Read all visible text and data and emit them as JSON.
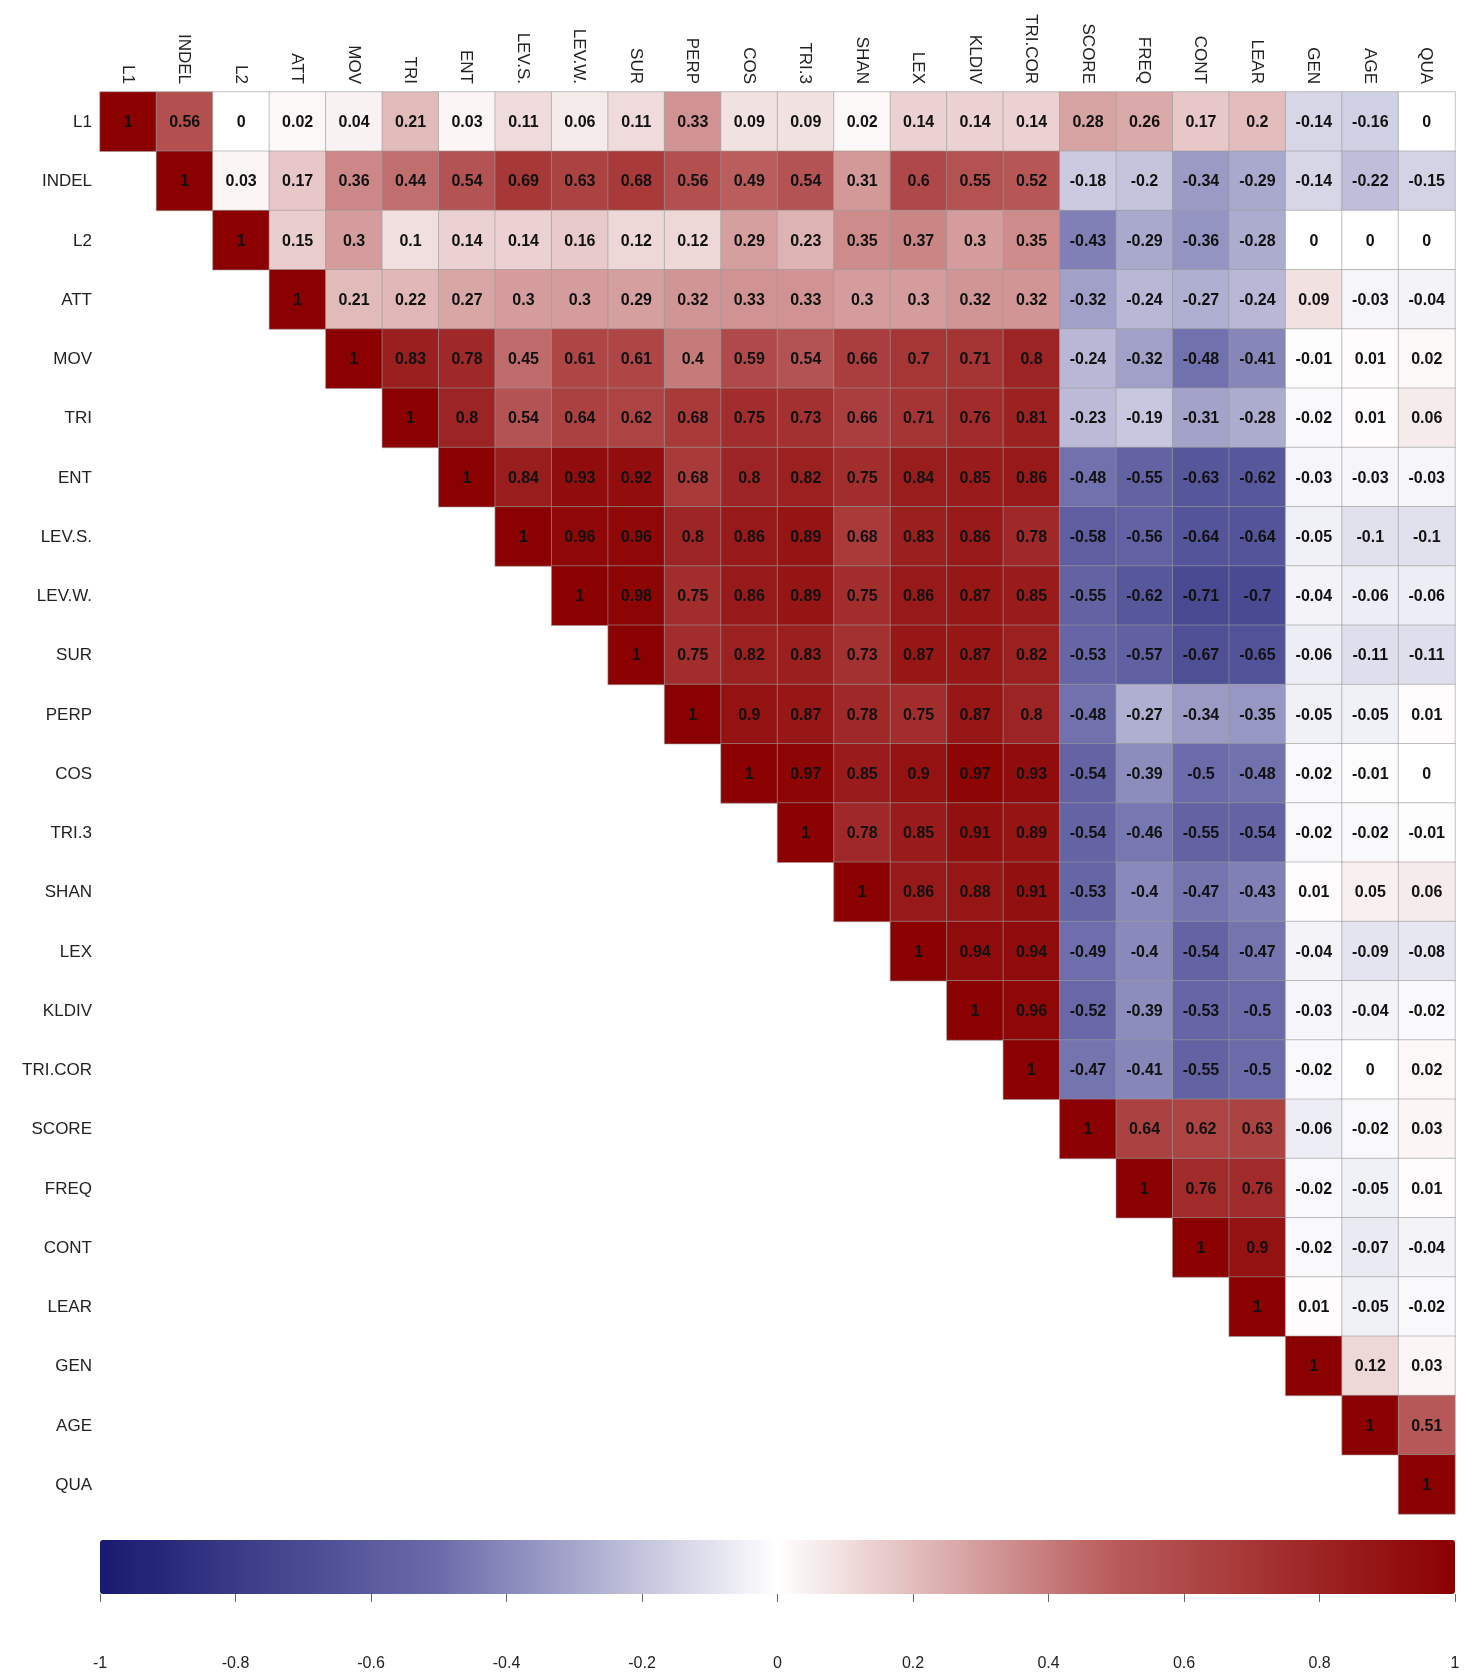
{
  "chart_data": {
    "type": "heatmap",
    "categories": [
      "L1",
      "INDEL",
      "L2",
      "ATT",
      "MOV",
      "TRI",
      "ENT",
      "LEV.S.",
      "LEV.W.",
      "SUR",
      "PERP",
      "COS",
      "TRI.3",
      "SHAN",
      "LEX",
      "KLDIV",
      "TRI.COR",
      "SCORE",
      "FREQ",
      "CONT",
      "LEAR",
      "GEN",
      "AGE",
      "QUA"
    ],
    "y_categories": [
      "L1",
      "INDEL",
      "L2",
      "ATT",
      "MOV",
      "TRI",
      "ENT",
      "LEV.S.",
      "LEV.W.",
      "SUR",
      "PERP",
      "COS",
      "TRI.3",
      "SHAN",
      "LEX",
      "KLDIV",
      "TRI.COR",
      "SCORE",
      "FREQ",
      "CONT",
      "LEAR",
      "GEN",
      "AGE",
      "QUA"
    ],
    "cells": [
      [
        1,
        0.56,
        0,
        0.02,
        0.04,
        0.21,
        0.03,
        0.11,
        0.06,
        0.11,
        0.33,
        0.09,
        0.09,
        0.02,
        0.14,
        0.14,
        0.14,
        0.28,
        0.26,
        0.17,
        0.2,
        -0.14,
        -0.16,
        0
      ],
      [
        null,
        1,
        0.03,
        0.17,
        0.36,
        0.44,
        0.54,
        0.69,
        0.63,
        0.68,
        0.56,
        0.49,
        0.54,
        0.31,
        0.6,
        0.55,
        0.52,
        -0.18,
        -0.2,
        -0.34,
        -0.29,
        -0.14,
        -0.22,
        -0.15
      ],
      [
        null,
        null,
        1,
        0.15,
        0.3,
        0.1,
        0.14,
        0.14,
        0.16,
        0.12,
        0.12,
        0.29,
        0.23,
        0.35,
        0.37,
        0.3,
        0.35,
        -0.43,
        -0.29,
        -0.36,
        -0.28,
        0,
        0,
        0
      ],
      [
        null,
        null,
        null,
        1,
        0.21,
        0.22,
        0.27,
        0.3,
        0.3,
        0.29,
        0.32,
        0.33,
        0.33,
        0.3,
        0.3,
        0.32,
        0.32,
        -0.32,
        -0.24,
        -0.27,
        -0.24,
        0.09,
        -0.03,
        -0.04
      ],
      [
        null,
        null,
        null,
        null,
        1,
        0.83,
        0.78,
        0.45,
        0.61,
        0.61,
        0.4,
        0.59,
        0.54,
        0.66,
        0.7,
        0.71,
        0.8,
        -0.24,
        -0.32,
        -0.48,
        -0.41,
        -0.01,
        0.01,
        0.02
      ],
      [
        null,
        null,
        null,
        null,
        null,
        1,
        0.8,
        0.54,
        0.64,
        0.62,
        0.68,
        0.75,
        0.73,
        0.66,
        0.71,
        0.76,
        0.81,
        -0.23,
        -0.19,
        -0.31,
        -0.28,
        -0.02,
        0.01,
        0.06
      ],
      [
        null,
        null,
        null,
        null,
        null,
        null,
        1,
        0.84,
        0.93,
        0.92,
        0.68,
        0.8,
        0.82,
        0.75,
        0.84,
        0.85,
        0.86,
        -0.48,
        -0.55,
        -0.63,
        -0.62,
        -0.03,
        -0.03,
        -0.03
      ],
      [
        null,
        null,
        null,
        null,
        null,
        null,
        null,
        1,
        0.96,
        0.96,
        0.8,
        0.86,
        0.89,
        0.68,
        0.83,
        0.86,
        0.78,
        -0.58,
        -0.56,
        -0.64,
        -0.64,
        -0.05,
        -0.1,
        -0.1
      ],
      [
        null,
        null,
        null,
        null,
        null,
        null,
        null,
        null,
        1,
        0.98,
        0.75,
        0.86,
        0.89,
        0.75,
        0.86,
        0.87,
        0.85,
        -0.55,
        -0.62,
        -0.71,
        -0.7,
        -0.04,
        -0.06,
        -0.06
      ],
      [
        null,
        null,
        null,
        null,
        null,
        null,
        null,
        null,
        null,
        1,
        0.75,
        0.82,
        0.83,
        0.73,
        0.87,
        0.87,
        0.82,
        -0.53,
        -0.57,
        -0.67,
        -0.65,
        -0.06,
        -0.11,
        -0.11
      ],
      [
        null,
        null,
        null,
        null,
        null,
        null,
        null,
        null,
        null,
        null,
        1,
        0.9,
        0.87,
        0.78,
        0.75,
        0.87,
        0.8,
        -0.48,
        -0.27,
        -0.34,
        -0.35,
        -0.05,
        -0.05,
        0.01
      ],
      [
        null,
        null,
        null,
        null,
        null,
        null,
        null,
        null,
        null,
        null,
        null,
        1,
        0.97,
        0.85,
        0.9,
        0.97,
        0.93,
        -0.54,
        -0.39,
        -0.5,
        -0.48,
        -0.02,
        -0.01,
        0
      ],
      [
        null,
        null,
        null,
        null,
        null,
        null,
        null,
        null,
        null,
        null,
        null,
        null,
        1,
        0.78,
        0.85,
        0.91,
        0.89,
        -0.54,
        -0.46,
        -0.55,
        -0.54,
        -0.02,
        -0.02,
        -0.01
      ],
      [
        null,
        null,
        null,
        null,
        null,
        null,
        null,
        null,
        null,
        null,
        null,
        null,
        null,
        1,
        0.86,
        0.88,
        0.91,
        -0.53,
        -0.4,
        -0.47,
        -0.43,
        0.01,
        0.05,
        0.06
      ],
      [
        null,
        null,
        null,
        null,
        null,
        null,
        null,
        null,
        null,
        null,
        null,
        null,
        null,
        null,
        1,
        0.94,
        0.94,
        -0.49,
        -0.4,
        -0.54,
        -0.47,
        -0.04,
        -0.09,
        -0.08
      ],
      [
        null,
        null,
        null,
        null,
        null,
        null,
        null,
        null,
        null,
        null,
        null,
        null,
        null,
        null,
        null,
        1,
        0.96,
        -0.52,
        -0.39,
        -0.53,
        -0.5,
        -0.03,
        -0.04,
        -0.02
      ],
      [
        null,
        null,
        null,
        null,
        null,
        null,
        null,
        null,
        null,
        null,
        null,
        null,
        null,
        null,
        null,
        null,
        1,
        -0.47,
        -0.41,
        -0.55,
        -0.5,
        -0.02,
        0,
        0.02
      ],
      [
        null,
        null,
        null,
        null,
        null,
        null,
        null,
        null,
        null,
        null,
        null,
        null,
        null,
        null,
        null,
        null,
        null,
        1,
        0.64,
        0.62,
        0.63,
        -0.06,
        -0.02,
        0.03
      ],
      [
        null,
        null,
        null,
        null,
        null,
        null,
        null,
        null,
        null,
        null,
        null,
        null,
        null,
        null,
        null,
        null,
        null,
        null,
        1,
        0.76,
        0.76,
        -0.02,
        -0.05,
        0.01
      ],
      [
        null,
        null,
        null,
        null,
        null,
        null,
        null,
        null,
        null,
        null,
        null,
        null,
        null,
        null,
        null,
        null,
        null,
        null,
        null,
        1,
        0.9,
        -0.02,
        -0.07,
        -0.04
      ],
      [
        null,
        null,
        null,
        null,
        null,
        null,
        null,
        null,
        null,
        null,
        null,
        null,
        null,
        null,
        null,
        null,
        null,
        null,
        null,
        null,
        1,
        0.01,
        -0.05,
        -0.02
      ],
      [
        null,
        null,
        null,
        null,
        null,
        null,
        null,
        null,
        null,
        null,
        null,
        null,
        null,
        null,
        null,
        null,
        null,
        null,
        null,
        null,
        null,
        1,
        0.12,
        0.03
      ],
      [
        null,
        null,
        null,
        null,
        null,
        null,
        null,
        null,
        null,
        null,
        null,
        null,
        null,
        null,
        null,
        null,
        null,
        null,
        null,
        null,
        null,
        null,
        1,
        0.51
      ],
      [
        null,
        null,
        null,
        null,
        null,
        null,
        null,
        null,
        null,
        null,
        null,
        null,
        null,
        null,
        null,
        null,
        null,
        null,
        null,
        null,
        null,
        null,
        null,
        1
      ]
    ],
    "data_labels": true,
    "clim": [
      -1,
      1
    ],
    "cticks": [
      -1,
      -0.8,
      -0.6,
      -0.4,
      -0.2,
      0,
      0.2,
      0.4,
      0.6,
      0.8,
      1
    ]
  }
}
